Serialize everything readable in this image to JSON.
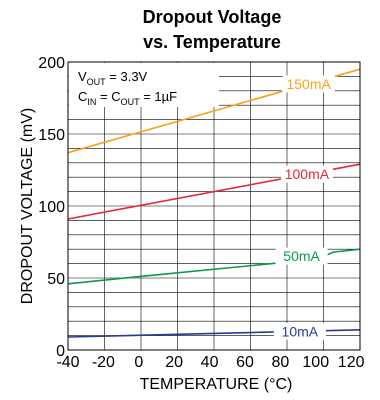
{
  "chart_data": {
    "type": "line",
    "title_line1": "Dropout Voltage",
    "title_line2": "vs. Temperature",
    "xlabel": "TEMPERATURE (°C)",
    "ylabel": "DROPOUT VOLTAGE (mV)",
    "xlim": [
      -40,
      125
    ],
    "ylim": [
      0,
      200
    ],
    "x_ticks": [
      -40,
      -20,
      0,
      20,
      40,
      60,
      80,
      100,
      120
    ],
    "y_ticks": [
      0,
      50,
      100,
      150,
      200
    ],
    "grid": true,
    "annotations": {
      "vout": {
        "main": "V",
        "sub": "OUT",
        "rest": " = 3.3V"
      },
      "cin_cout": {
        "main1": "C",
        "sub1": "IN",
        "mid": " = C",
        "sub2": "OUT",
        "rest": " = 1µF"
      }
    },
    "series": [
      {
        "name": "150mA",
        "color": "#f7a21b",
        "x": [
          -40,
          125
        ],
        "y": [
          137,
          195
        ]
      },
      {
        "name": "100mA",
        "color": "#e32a37",
        "x": [
          -40,
          125
        ],
        "y": [
          91,
          129
        ]
      },
      {
        "name": "50mA",
        "color": "#0a9a4e",
        "x": [
          -40,
          0,
          100,
          110,
          125
        ],
        "y": [
          46,
          51,
          63,
          68,
          70
        ]
      },
      {
        "name": "10mA",
        "color": "#2b3a9a",
        "x": [
          -40,
          125
        ],
        "y": [
          9,
          14
        ]
      }
    ]
  }
}
